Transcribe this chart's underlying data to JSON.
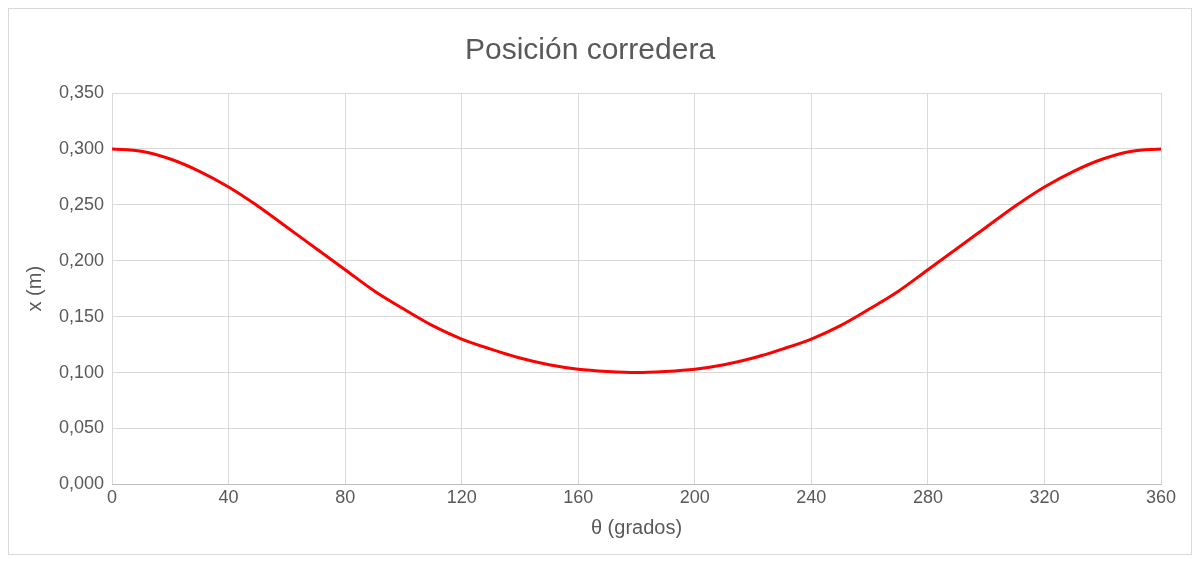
{
  "chart_data": {
    "type": "line",
    "title": "Posición corredera",
    "xlabel": "θ (grados)",
    "ylabel": "x (m)",
    "x": [
      0,
      10,
      20,
      30,
      40,
      50,
      60,
      70,
      80,
      90,
      100,
      110,
      120,
      130,
      140,
      150,
      160,
      170,
      180,
      190,
      200,
      210,
      220,
      230,
      240,
      250,
      260,
      270,
      280,
      290,
      300,
      310,
      320,
      330,
      340,
      350,
      360
    ],
    "series": [
      {
        "color": "#ff0000",
        "values": [
          0.3,
          0.298,
          0.291,
          0.28,
          0.266,
          0.249,
          0.23,
          0.211,
          0.192,
          0.173,
          0.157,
          0.142,
          0.13,
          0.121,
          0.113,
          0.107,
          0.103,
          0.101,
          0.1,
          0.101,
          0.103,
          0.107,
          0.113,
          0.121,
          0.13,
          0.142,
          0.157,
          0.173,
          0.192,
          0.211,
          0.23,
          0.249,
          0.266,
          0.28,
          0.291,
          0.298,
          0.3
        ]
      }
    ],
    "xlim": [
      0,
      360
    ],
    "xticks": [
      0,
      40,
      80,
      120,
      160,
      200,
      240,
      280,
      320,
      360
    ],
    "ylim": [
      0,
      0.35
    ],
    "yticks": [
      {
        "value": 0,
        "label": "0,000"
      },
      {
        "value": 0.05,
        "label": "0,050"
      },
      {
        "value": 0.1,
        "label": "0,100"
      },
      {
        "value": 0.15,
        "label": "0,150"
      },
      {
        "value": 0.2,
        "label": "0,200"
      },
      {
        "value": 0.25,
        "label": "0,250"
      },
      {
        "value": 0.3,
        "label": "0,300"
      },
      {
        "value": 0.35,
        "label": "0,350"
      }
    ],
    "grid": true,
    "legend": false,
    "marker": "none",
    "line_style": "solid"
  }
}
